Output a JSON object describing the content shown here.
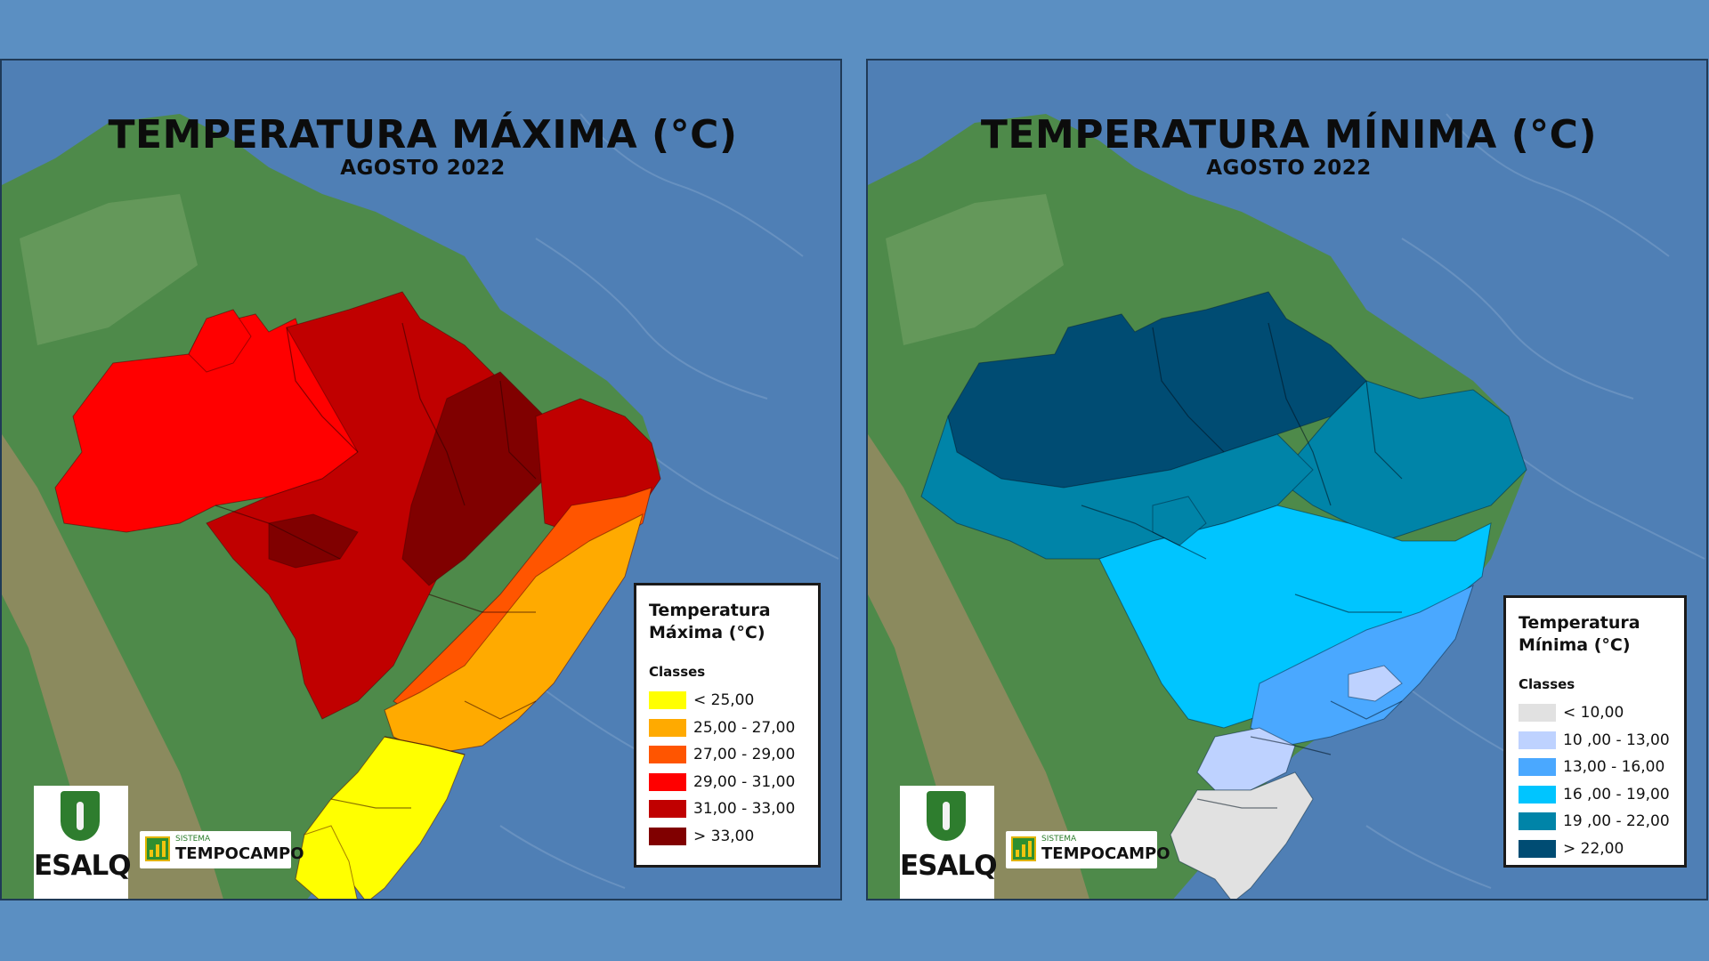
{
  "maps": [
    {
      "id": "max",
      "title": "TEMPERATURA MÁXIMA (°C)",
      "subtitle": "AGOSTO 2022",
      "legend": {
        "title_line1": "Temperatura",
        "title_line2": "Máxima (°C)",
        "classes_label": "Classes",
        "classes": [
          {
            "label": "< 25,00",
            "color": "#ffff00"
          },
          {
            "label": "25,00 - 27,00",
            "color": "#ffaa00"
          },
          {
            "label": "27,00 - 29,00",
            "color": "#ff5500"
          },
          {
            "label": "29,00 - 31,00",
            "color": "#ff0000"
          },
          {
            "label": "31,00 - 33,00",
            "color": "#c00000"
          },
          {
            "label": "> 33,00",
            "color": "#800000"
          }
        ]
      }
    },
    {
      "id": "min",
      "title": "TEMPERATURA MÍNIMA (°C)",
      "subtitle": "AGOSTO 2022",
      "legend": {
        "title_line1": "Temperatura",
        "title_line2": "Mínima (°C)",
        "classes_label": "Classes",
        "classes": [
          {
            "label": "< 10,00",
            "color": "#e1e1e1"
          },
          {
            "label": "10 ,00 - 13,00",
            "color": "#bed2ff"
          },
          {
            "label": "13,00 - 16,00",
            "color": "#4aa8ff"
          },
          {
            "label": "16 ,00 - 19,00",
            "color": "#00c5ff"
          },
          {
            "label": "19 ,00 - 22,00",
            "color": "#0084a8"
          },
          {
            "label": "> 22,00",
            "color": "#004c73"
          }
        ]
      }
    }
  ],
  "logos": {
    "esalq_text": "ESALQ",
    "sistema_text": "SISTEMA",
    "tempocampo_text": "TEMPOCAMPO"
  }
}
